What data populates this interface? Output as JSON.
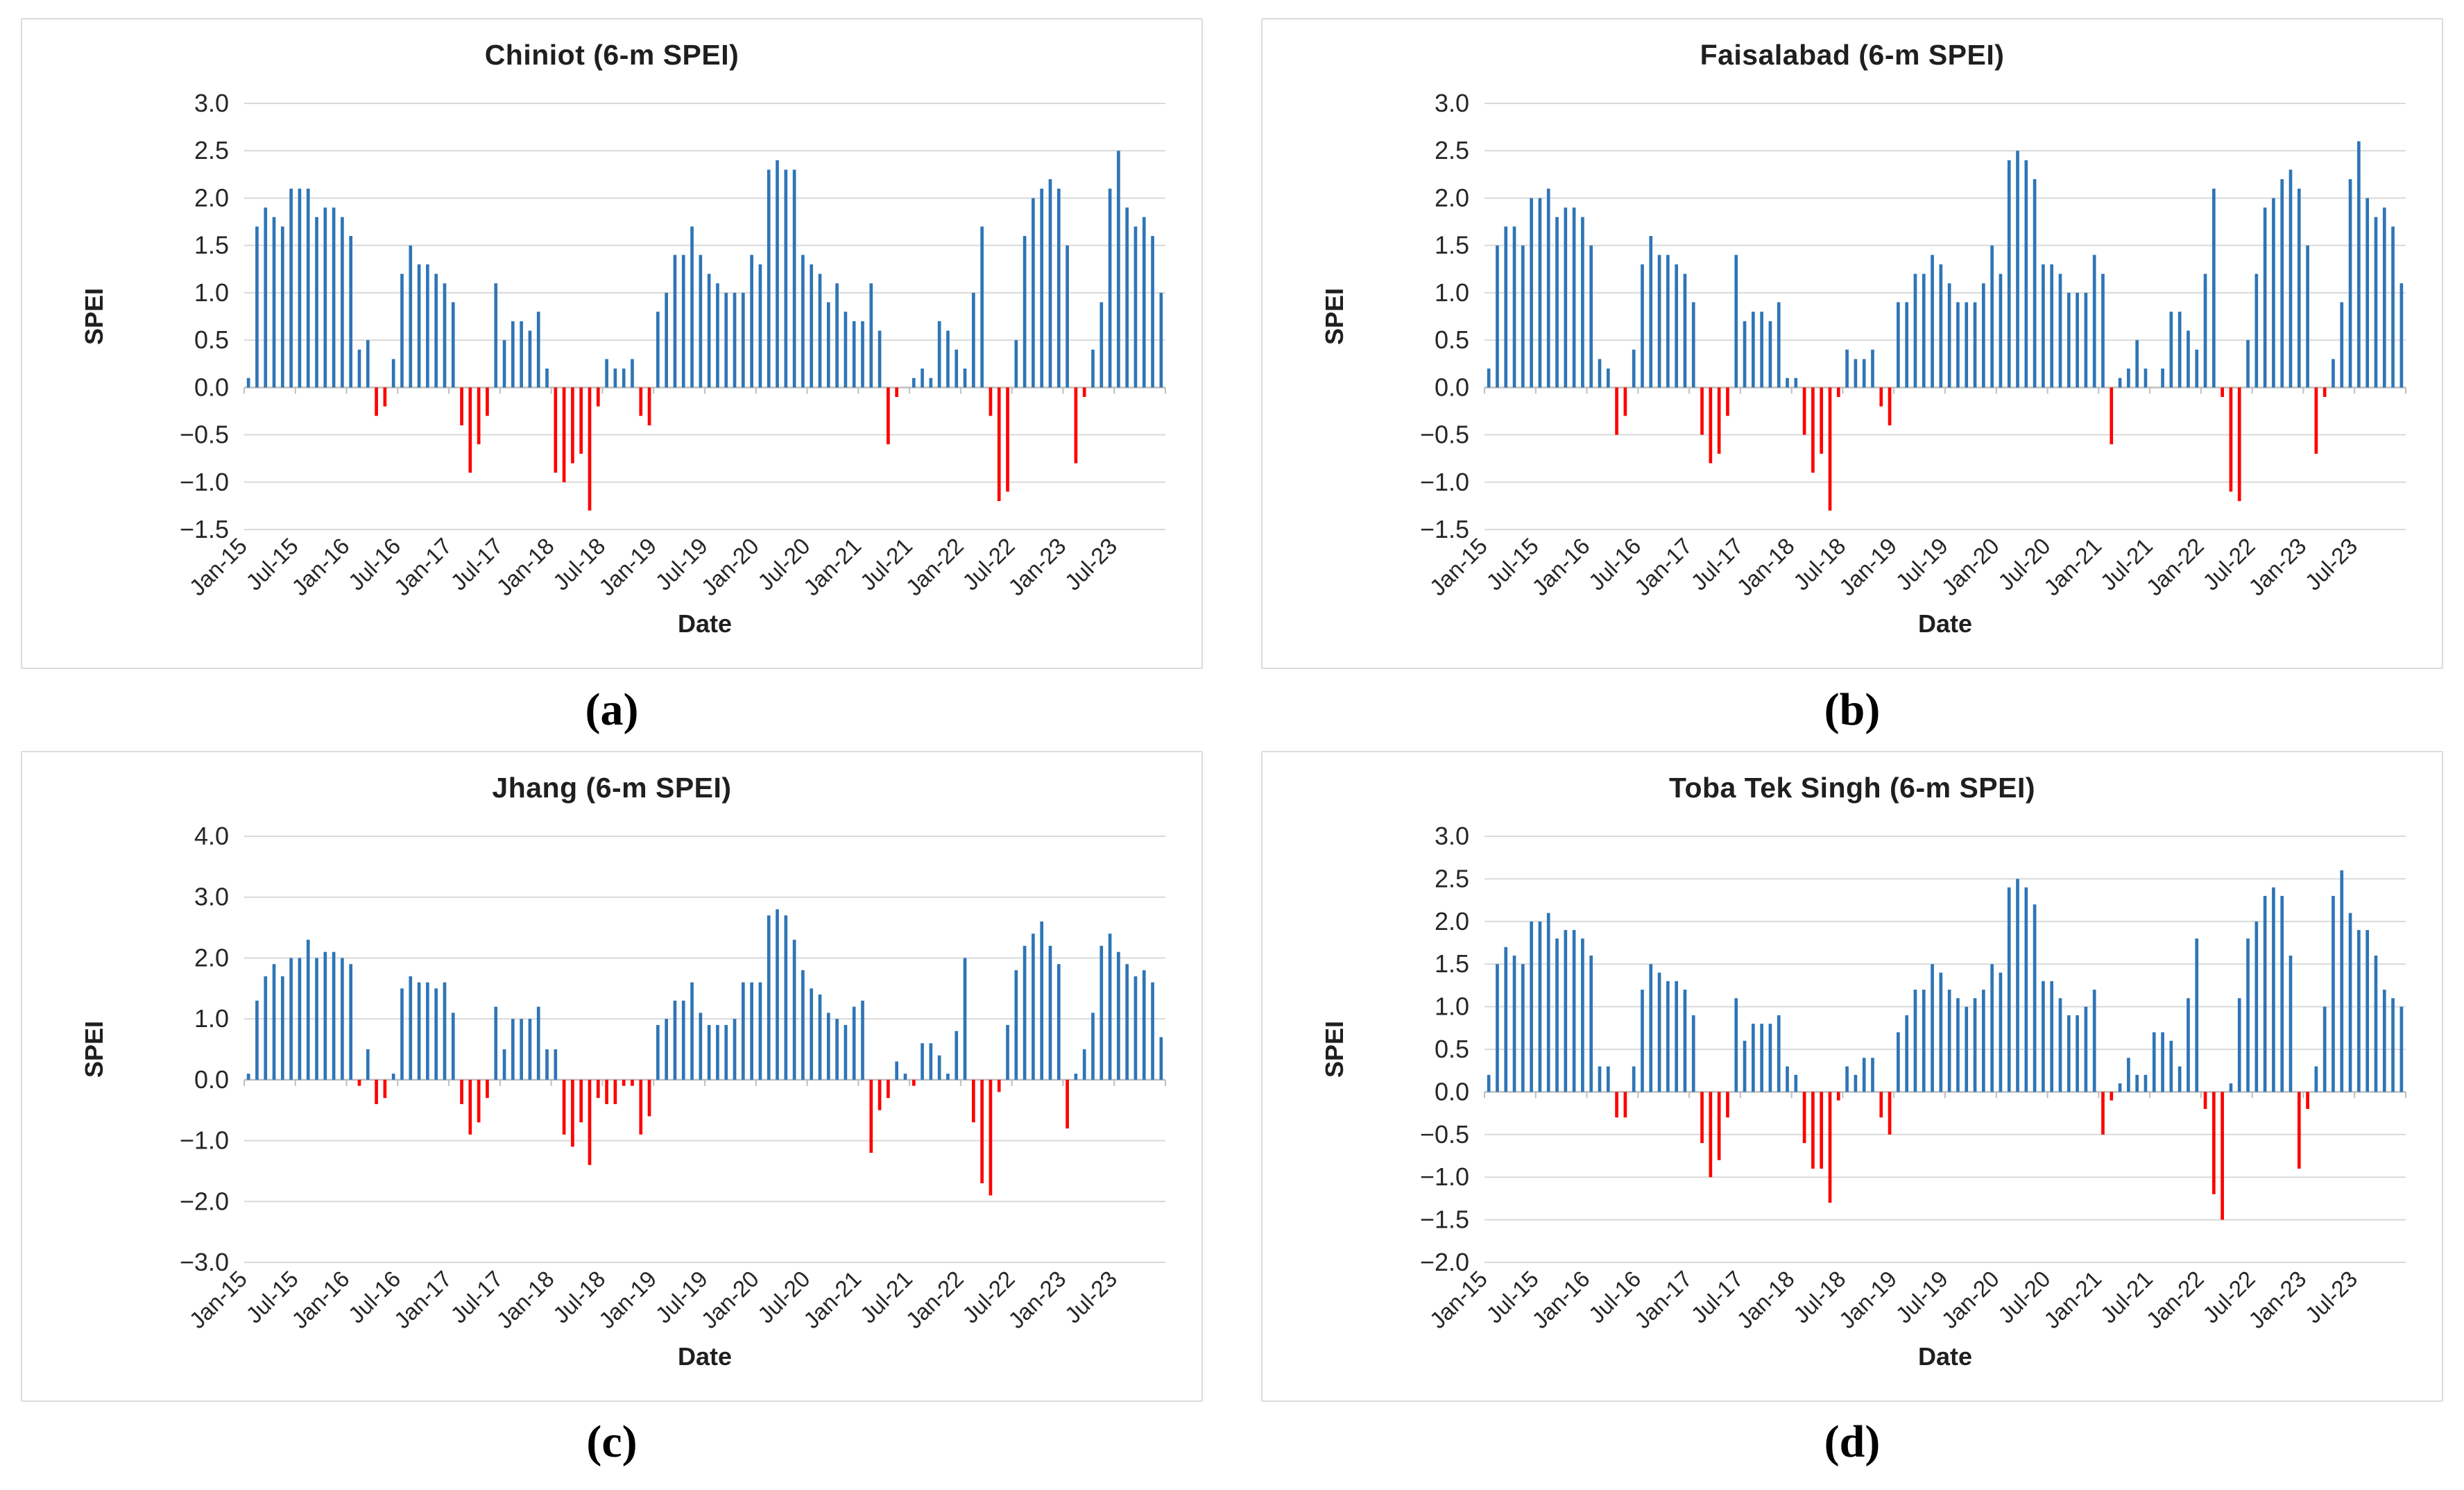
{
  "figure": {
    "captions": [
      "(a)",
      "(b)",
      "(c)",
      "(d)"
    ],
    "xlabel": "Date",
    "ylabel": "SPEI",
    "x_tick_every": 6,
    "colors": {
      "bar_positive": "#2E75B6",
      "bar_negative": "#FF0000",
      "gridline": "#D9D9D9",
      "axis_line": "#BFBFBF",
      "tick_text": "#262626",
      "panel_border": "#DCDCDC"
    },
    "months": [
      "Jan-15",
      "Feb-15",
      "Mar-15",
      "Apr-15",
      "May-15",
      "Jun-15",
      "Jul-15",
      "Aug-15",
      "Sep-15",
      "Oct-15",
      "Nov-15",
      "Dec-15",
      "Jan-16",
      "Feb-16",
      "Mar-16",
      "Apr-16",
      "May-16",
      "Jun-16",
      "Jul-16",
      "Aug-16",
      "Sep-16",
      "Oct-16",
      "Nov-16",
      "Dec-16",
      "Jan-17",
      "Feb-17",
      "Mar-17",
      "Apr-17",
      "May-17",
      "Jun-17",
      "Jul-17",
      "Aug-17",
      "Sep-17",
      "Oct-17",
      "Nov-17",
      "Dec-17",
      "Jan-18",
      "Feb-18",
      "Mar-18",
      "Apr-18",
      "May-18",
      "Jun-18",
      "Jul-18",
      "Aug-18",
      "Sep-18",
      "Oct-18",
      "Nov-18",
      "Dec-18",
      "Jan-19",
      "Feb-19",
      "Mar-19",
      "Apr-19",
      "May-19",
      "Jun-19",
      "Jul-19",
      "Aug-19",
      "Sep-19",
      "Oct-19",
      "Nov-19",
      "Dec-19",
      "Jan-20",
      "Feb-20",
      "Mar-20",
      "Apr-20",
      "May-20",
      "Jun-20",
      "Jul-20",
      "Aug-20",
      "Sep-20",
      "Oct-20",
      "Nov-20",
      "Dec-20",
      "Jan-21",
      "Feb-21",
      "Mar-21",
      "Apr-21",
      "May-21",
      "Jun-21",
      "Jul-21",
      "Aug-21",
      "Sep-21",
      "Oct-21",
      "Nov-21",
      "Dec-21",
      "Jan-22",
      "Feb-22",
      "Mar-22",
      "Apr-22",
      "May-22",
      "Jun-22",
      "Jul-22",
      "Aug-22",
      "Sep-22",
      "Oct-22",
      "Nov-22",
      "Dec-22",
      "Jan-23",
      "Feb-23",
      "Mar-23",
      "Apr-23",
      "May-23",
      "Jun-23",
      "Jul-23",
      "Aug-23",
      "Sep-23",
      "Oct-23",
      "Nov-23",
      "Dec-23"
    ]
  },
  "chart_data": [
    {
      "type": "bar",
      "title": "Chiniot (6-m SPEI)",
      "xlabel": "Date",
      "ylabel": "SPEI",
      "ylim": [
        -1.5,
        3.0
      ],
      "ytick_step": 0.5,
      "grid": true,
      "legend": "none",
      "values": [
        0.1,
        1.7,
        1.9,
        1.8,
        1.7,
        2.1,
        2.1,
        2.1,
        1.8,
        1.9,
        1.9,
        1.8,
        1.6,
        0.4,
        0.5,
        -0.3,
        -0.2,
        0.3,
        1.2,
        1.5,
        1.3,
        1.3,
        1.2,
        1.1,
        0.9,
        -0.4,
        -0.9,
        -0.6,
        -0.3,
        1.1,
        0.5,
        0.7,
        0.7,
        0.6,
        0.8,
        0.2,
        -0.9,
        -1.0,
        -0.8,
        -0.7,
        -1.3,
        -0.2,
        0.3,
        0.2,
        0.2,
        0.3,
        -0.3,
        -0.4,
        0.8,
        1.0,
        1.4,
        1.4,
        1.7,
        1.4,
        1.2,
        1.1,
        1.0,
        1.0,
        1.0,
        1.4,
        1.3,
        2.3,
        2.4,
        2.3,
        2.3,
        1.4,
        1.3,
        1.2,
        0.9,
        1.1,
        0.8,
        0.7,
        0.7,
        1.1,
        0.6,
        -0.6,
        -0.1,
        0.0,
        0.1,
        0.2,
        0.1,
        0.7,
        0.6,
        0.4,
        0.2,
        1.0,
        1.7,
        -0.3,
        -1.2,
        -1.1,
        0.5,
        1.6,
        2.0,
        2.1,
        2.2,
        2.1,
        1.5,
        -0.8,
        -0.1,
        0.4,
        0.9,
        2.1,
        2.5,
        1.9,
        1.7,
        1.8,
        1.6,
        1.0
      ]
    },
    {
      "type": "bar",
      "title": "Faisalabad (6-m SPEI)",
      "xlabel": "Date",
      "ylabel": "SPEI",
      "ylim": [
        -1.5,
        3.0
      ],
      "ytick_step": 0.5,
      "grid": true,
      "legend": "none",
      "values": [
        0.2,
        1.5,
        1.7,
        1.7,
        1.5,
        2.0,
        2.0,
        2.1,
        1.8,
        1.9,
        1.9,
        1.8,
        1.5,
        0.3,
        0.2,
        -0.5,
        -0.3,
        0.4,
        1.3,
        1.6,
        1.4,
        1.4,
        1.3,
        1.2,
        0.9,
        -0.5,
        -0.8,
        -0.7,
        -0.3,
        1.4,
        0.7,
        0.8,
        0.8,
        0.7,
        0.9,
        0.1,
        0.1,
        -0.5,
        -0.9,
        -0.7,
        -1.3,
        -0.1,
        0.4,
        0.3,
        0.3,
        0.4,
        -0.2,
        -0.4,
        0.9,
        0.9,
        1.2,
        1.2,
        1.4,
        1.3,
        1.1,
        0.9,
        0.9,
        0.9,
        1.1,
        1.5,
        1.2,
        2.4,
        2.5,
        2.4,
        2.2,
        1.3,
        1.3,
        1.2,
        1.0,
        1.0,
        1.0,
        1.4,
        1.2,
        -0.6,
        0.1,
        0.2,
        0.5,
        0.2,
        0.0,
        0.2,
        0.8,
        0.8,
        0.6,
        0.4,
        1.2,
        2.1,
        -0.1,
        -1.1,
        -1.2,
        0.5,
        1.2,
        1.9,
        2.0,
        2.2,
        2.3,
        2.1,
        1.5,
        -0.7,
        -0.1,
        0.3,
        0.9,
        2.2,
        2.6,
        2.0,
        1.8,
        1.9,
        1.7,
        1.1
      ]
    },
    {
      "type": "bar",
      "title": "Jhang (6-m SPEI)",
      "xlabel": "Date",
      "ylabel": "SPEI",
      "ylim": [
        -3.0,
        4.0
      ],
      "ytick_step": 1.0,
      "grid": true,
      "legend": "none",
      "values": [
        0.1,
        1.3,
        1.7,
        1.9,
        1.7,
        2.0,
        2.0,
        2.3,
        2.0,
        2.1,
        2.1,
        2.0,
        1.9,
        -0.1,
        0.5,
        -0.4,
        -0.3,
        0.1,
        1.5,
        1.7,
        1.6,
        1.6,
        1.5,
        1.6,
        1.1,
        -0.4,
        -0.9,
        -0.7,
        -0.3,
        1.2,
        0.5,
        1.0,
        1.0,
        1.0,
        1.2,
        0.5,
        0.5,
        -0.9,
        -1.1,
        -0.7,
        -1.4,
        -0.3,
        -0.4,
        -0.4,
        -0.1,
        -0.1,
        -0.9,
        -0.6,
        0.9,
        1.0,
        1.3,
        1.3,
        1.6,
        1.1,
        0.9,
        0.9,
        0.9,
        1.0,
        1.6,
        1.6,
        1.6,
        2.7,
        2.8,
        2.7,
        2.3,
        1.8,
        1.5,
        1.4,
        1.1,
        1.0,
        0.9,
        1.2,
        1.3,
        -1.2,
        -0.5,
        -0.3,
        0.3,
        0.1,
        -0.1,
        0.6,
        0.6,
        0.4,
        0.1,
        0.8,
        2.0,
        -0.7,
        -1.7,
        -1.9,
        -0.2,
        0.9,
        1.8,
        2.2,
        2.4,
        2.6,
        2.2,
        1.9,
        -0.8,
        0.1,
        0.5,
        1.1,
        2.2,
        2.4,
        2.1,
        1.9,
        1.7,
        1.8,
        1.6,
        0.7
      ]
    },
    {
      "type": "bar",
      "title": "Toba Tek Singh (6-m SPEI)",
      "xlabel": "Date",
      "ylabel": "SPEI",
      "ylim": [
        -2.0,
        3.0
      ],
      "ytick_step": 0.5,
      "grid": true,
      "legend": "none",
      "values": [
        0.2,
        1.5,
        1.7,
        1.6,
        1.5,
        2.0,
        2.0,
        2.1,
        1.8,
        1.9,
        1.9,
        1.8,
        1.6,
        0.3,
        0.3,
        -0.3,
        -0.3,
        0.3,
        1.2,
        1.5,
        1.4,
        1.3,
        1.3,
        1.2,
        0.9,
        -0.6,
        -1.0,
        -0.8,
        -0.3,
        1.1,
        0.6,
        0.8,
        0.8,
        0.8,
        0.9,
        0.3,
        0.2,
        -0.6,
        -0.9,
        -0.9,
        -1.3,
        -0.1,
        0.3,
        0.2,
        0.4,
        0.4,
        -0.3,
        -0.5,
        0.7,
        0.9,
        1.2,
        1.2,
        1.5,
        1.4,
        1.2,
        1.1,
        1.0,
        1.1,
        1.2,
        1.5,
        1.4,
        2.4,
        2.5,
        2.4,
        2.2,
        1.3,
        1.3,
        1.1,
        0.9,
        0.9,
        1.0,
        1.2,
        -0.5,
        -0.1,
        0.1,
        0.4,
        0.2,
        0.2,
        0.7,
        0.7,
        0.6,
        0.3,
        1.1,
        1.8,
        -0.2,
        -1.2,
        -1.5,
        0.1,
        1.1,
        1.8,
        2.0,
        2.3,
        2.4,
        2.3,
        1.6,
        -0.9,
        -0.2,
        0.3,
        1.0,
        2.3,
        2.6,
        2.1,
        1.9,
        1.9,
        1.6,
        1.2,
        1.1,
        1.0
      ]
    }
  ]
}
